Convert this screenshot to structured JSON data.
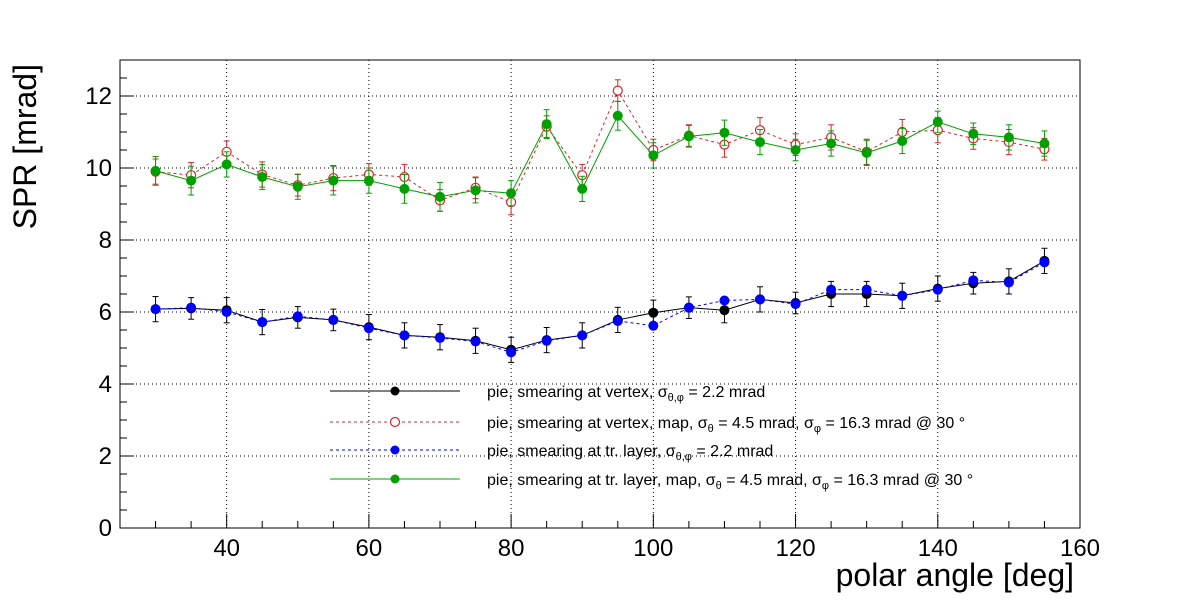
{
  "chart_data": {
    "type": "scatter",
    "title": "",
    "xlabel": "polar angle [deg]",
    "ylabel": "SPR [mrad]",
    "xlim": [
      25,
      160
    ],
    "ylim": [
      0,
      13
    ],
    "x_ticks": [
      40,
      60,
      80,
      100,
      120,
      140,
      160
    ],
    "y_ticks": [
      0,
      2,
      4,
      6,
      8,
      10,
      12
    ],
    "grid": true,
    "legend_position": "bottom-center",
    "x": [
      30,
      35,
      40,
      45,
      50,
      55,
      60,
      65,
      70,
      75,
      80,
      85,
      90,
      95,
      100,
      105,
      110,
      115,
      120,
      125,
      130,
      135,
      140,
      145,
      150,
      155
    ],
    "series": [
      {
        "legend": [
          "pie, smearing at vertex,   σ",
          "θ,φ",
          " = 2.2 mrad"
        ],
        "color": "#000000",
        "marker": "filled-circle",
        "line": "solid",
        "values": [
          6.08,
          6.1,
          6.05,
          5.72,
          5.85,
          5.78,
          5.58,
          5.35,
          5.3,
          5.2,
          4.95,
          5.22,
          5.35,
          5.78,
          5.98,
          6.12,
          6.05,
          6.35,
          6.25,
          6.5,
          6.5,
          6.45,
          6.65,
          6.8,
          6.85,
          7.42
        ],
        "errors": [
          0.35,
          0.3,
          0.35,
          0.35,
          0.3,
          0.3,
          0.35,
          0.35,
          0.35,
          0.35,
          0.35,
          0.35,
          0.35,
          0.35,
          0.35,
          0.3,
          0.35,
          0.35,
          0.3,
          0.35,
          0.35,
          0.35,
          0.35,
          0.3,
          0.35,
          0.35
        ]
      },
      {
        "legend": [
          "pie, smearing at vertex, map,    σ",
          "θ",
          " = 4.5 mrad,    σ",
          "φ",
          " = 16.3 mrad @ 30  °"
        ],
        "color": "#d62728",
        "marker": "open-circle",
        "line": "dashed",
        "values": [
          9.9,
          9.8,
          10.45,
          9.82,
          9.52,
          9.72,
          9.82,
          9.75,
          9.1,
          9.45,
          9.05,
          11.15,
          9.8,
          12.15,
          10.5,
          10.9,
          10.65,
          11.05,
          10.65,
          10.85,
          10.45,
          11.0,
          11.05,
          10.82,
          10.72,
          10.52
        ],
        "errors": [
          0.35,
          0.35,
          0.3,
          0.35,
          0.3,
          0.35,
          0.3,
          0.35,
          0.3,
          0.3,
          0.35,
          0.3,
          0.3,
          0.3,
          0.3,
          0.3,
          0.35,
          0.35,
          0.3,
          0.35,
          0.35,
          0.35,
          0.35,
          0.3,
          0.35,
          0.3
        ]
      },
      {
        "legend": [
          "pie, smearing at tr. layer,   σ",
          "θ,φ",
          " = 2.2 mrad"
        ],
        "color": "#0000ff",
        "marker": "filled-circle",
        "line": "dashed",
        "values": [
          6.08,
          6.12,
          6.0,
          5.72,
          5.88,
          5.78,
          5.55,
          5.35,
          5.28,
          5.18,
          4.88,
          5.2,
          5.35,
          5.75,
          5.62,
          6.12,
          6.32,
          6.35,
          6.22,
          6.62,
          6.62,
          6.45,
          6.62,
          6.88,
          6.82,
          7.38
        ]
      },
      {
        "legend": [
          "pie, smearing at tr. layer, map,    σ",
          "θ",
          " = 4.5 mrad,    σ",
          "φ",
          " = 16.3 mrad @ 30  °"
        ],
        "color": "#00a000",
        "marker": "filled-circle",
        "line": "solid",
        "values": [
          9.92,
          9.65,
          10.1,
          9.75,
          9.48,
          9.65,
          9.65,
          9.42,
          9.2,
          9.38,
          9.3,
          11.22,
          9.42,
          11.45,
          10.35,
          10.88,
          10.98,
          10.72,
          10.5,
          10.68,
          10.42,
          10.75,
          11.28,
          10.95,
          10.85,
          10.68
        ],
        "errors": [
          0.4,
          0.4,
          0.35,
          0.35,
          0.35,
          0.4,
          0.35,
          0.4,
          0.4,
          0.35,
          0.35,
          0.4,
          0.35,
          0.4,
          0.35,
          0.3,
          0.35,
          0.35,
          0.3,
          0.35,
          0.35,
          0.35,
          0.3,
          0.3,
          0.35,
          0.35
        ]
      }
    ]
  }
}
